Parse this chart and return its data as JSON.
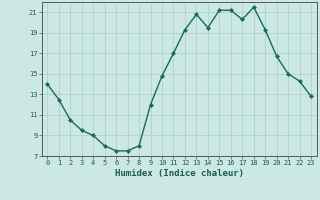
{
  "x": [
    0,
    1,
    2,
    3,
    4,
    5,
    6,
    7,
    8,
    9,
    10,
    11,
    12,
    13,
    14,
    15,
    16,
    17,
    18,
    19,
    20,
    21,
    22,
    23
  ],
  "y": [
    14.0,
    12.5,
    10.5,
    9.5,
    9.0,
    8.0,
    7.5,
    7.5,
    8.0,
    12.0,
    14.8,
    17.0,
    19.3,
    20.8,
    19.5,
    21.2,
    21.2,
    20.3,
    21.5,
    19.3,
    16.7,
    15.0,
    14.3,
    12.8
  ],
  "line_color": "#1a6b5a",
  "marker": "D",
  "marker_size": 2.0,
  "line_width": 1.0,
  "xlabel": "Humidex (Indice chaleur)",
  "xlim": [
    -0.5,
    23.5
  ],
  "ylim": [
    7,
    22
  ],
  "yticks": [
    7,
    9,
    11,
    13,
    15,
    17,
    19,
    21
  ],
  "xticks": [
    0,
    1,
    2,
    3,
    4,
    5,
    6,
    7,
    8,
    9,
    10,
    11,
    12,
    13,
    14,
    15,
    16,
    17,
    18,
    19,
    20,
    21,
    22,
    23
  ],
  "bg_color": "#cce8e4",
  "grid_color": "#aacfcb",
  "tick_label_color": "#1a5a50",
  "xlabel_color": "#1a5a50",
  "tick_fontsize": 5.0,
  "xlabel_fontsize": 6.5
}
